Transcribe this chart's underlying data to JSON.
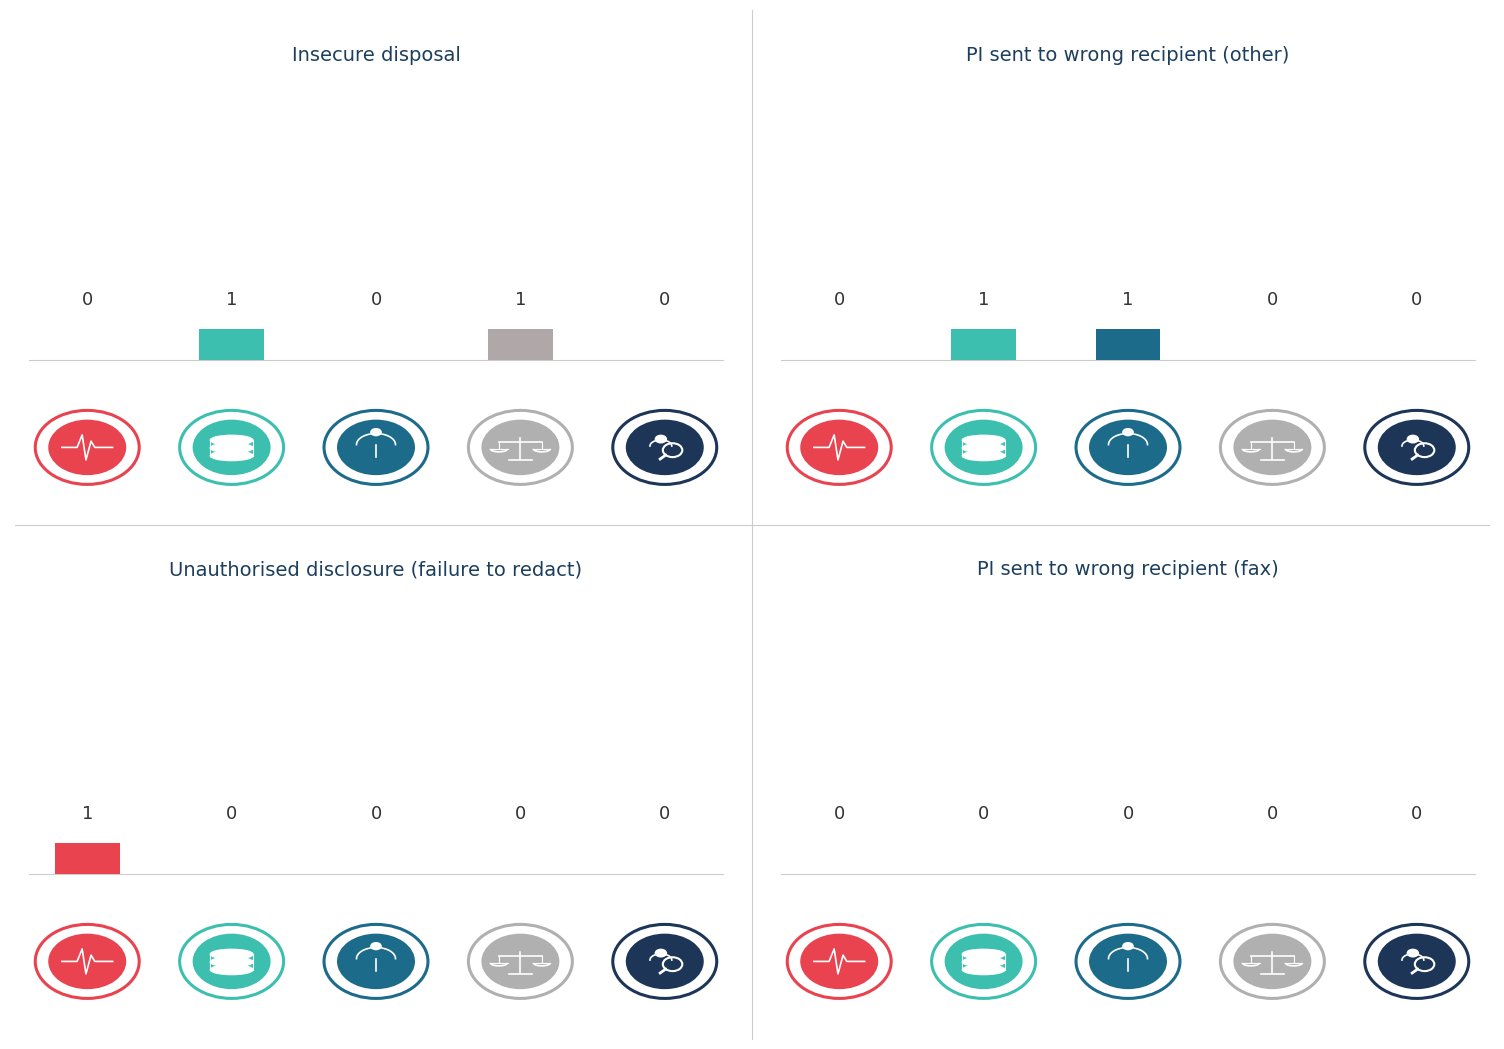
{
  "panels": [
    {
      "title": "Insecure disposal",
      "values": [
        0,
        1,
        0,
        1,
        0
      ],
      "bar_colors": [
        "none",
        "#3dbfb0",
        "none",
        "#b0a8a8",
        "none"
      ]
    },
    {
      "title": "PI sent to wrong recipient (other)",
      "values": [
        0,
        1,
        1,
        0,
        0
      ],
      "bar_colors": [
        "none",
        "#3dbfb0",
        "#1d6b8a",
        "none",
        "none"
      ]
    },
    {
      "title": "Unauthorised disclosure (failure to redact)",
      "values": [
        1,
        0,
        0,
        0,
        0
      ],
      "bar_colors": [
        "#e8434e",
        "none",
        "none",
        "none",
        "none"
      ]
    },
    {
      "title": "PI sent to wrong recipient (fax)",
      "values": [
        0,
        0,
        0,
        0,
        0
      ],
      "bar_colors": [
        "none",
        "none",
        "none",
        "none",
        "none"
      ]
    }
  ],
  "icon_circle_colors": [
    "#e8434e",
    "#3dbfb0",
    "#1d6b8a",
    "#b0b0b0",
    "#1d3557"
  ],
  "icon_border_colors": [
    "#e8434e",
    "#3dbfb0",
    "#1d6b8a",
    "#b0b0b0",
    "#1d3557"
  ],
  "title_color": "#1d3f5e",
  "value_color": "#333333",
  "bg_color": "#ffffff",
  "divider_color": "#cccccc",
  "title_fontsize": 14,
  "value_fontsize": 13
}
